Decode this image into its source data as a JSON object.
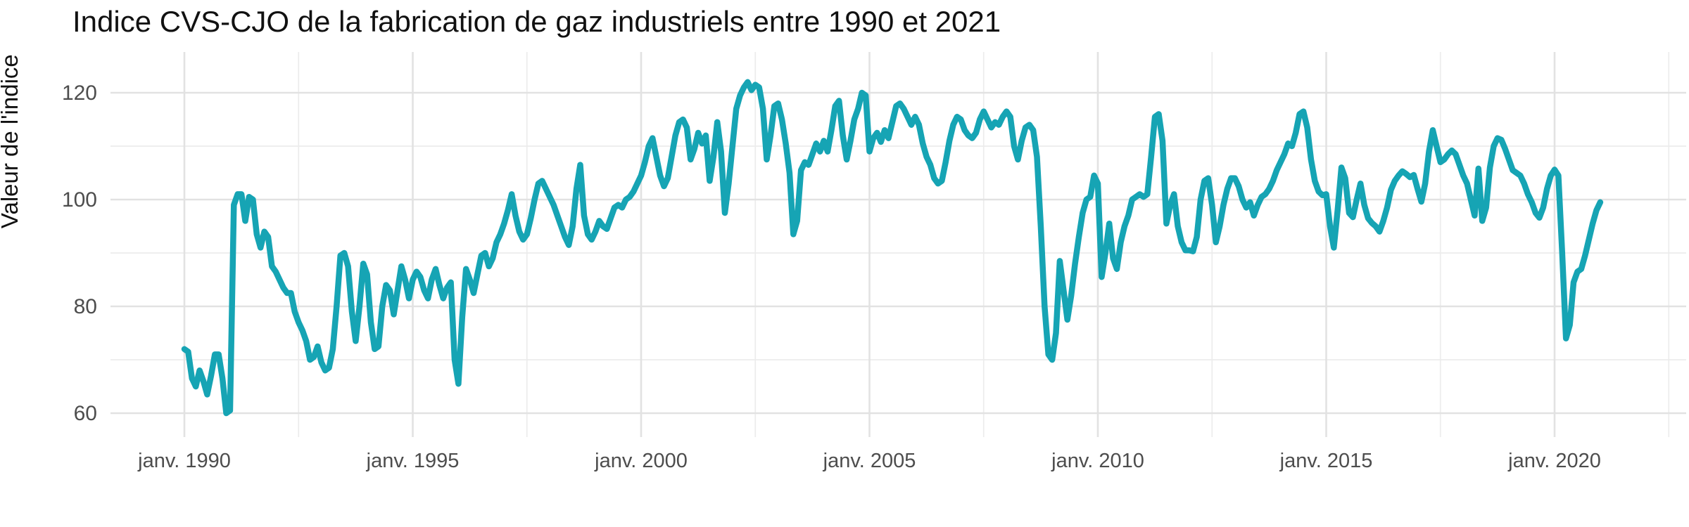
{
  "title": "Indice CVS-CJO de la fabrication de gaz industriels entre 1990 et 2021",
  "colors": {
    "background": "#ffffff",
    "line": "#16A4B4",
    "grid_major": "#E2E2E2",
    "grid_minor": "#ECECEC",
    "tick_text": "#4D4D4D",
    "title_text": "#111111"
  },
  "chart_data": {
    "type": "line",
    "title": "Indice CVS-CJO de la fabrication de gaz industriels entre 1990 et 2021",
    "xlabel": "",
    "ylabel": "Valeur de l'indice",
    "legend": false,
    "grid": true,
    "ylim": [
      60,
      122
    ],
    "y_ticks": [
      60,
      80,
      100,
      120
    ],
    "y_minor_ticks": [
      70,
      90,
      110
    ],
    "x_ticks": [
      {
        "label": "janv. 1990",
        "year": 1990
      },
      {
        "label": "janv. 1995",
        "year": 1995
      },
      {
        "label": "janv. 2000",
        "year": 2000
      },
      {
        "label": "janv. 2005",
        "year": 2005
      },
      {
        "label": "janv. 2010",
        "year": 2010
      },
      {
        "label": "janv. 2015",
        "year": 2015
      },
      {
        "label": "janv. 2020",
        "year": 2020
      }
    ],
    "x_minor_years": [
      1987.5,
      1992.5,
      1997.5,
      2002.5,
      2007.5,
      2012.5,
      2017.5,
      2022.5
    ],
    "x_start_year": 1990,
    "x_start_month": 1,
    "x_end_year": 2021,
    "x_end_month": 1,
    "frequency": "monthly",
    "monthly_values": [
      72,
      71.5,
      66.5,
      65,
      68,
      66,
      63.5,
      67,
      71,
      71,
      66.5,
      60,
      60.5,
      99,
      101,
      101,
      96,
      100.5,
      100,
      93.5,
      91,
      94,
      93,
      87.5,
      86.5,
      85,
      83.5,
      82.5,
      82.5,
      79,
      77,
      75.5,
      73.5,
      70,
      70.5,
      72.5,
      69.5,
      68,
      68.5,
      72,
      80,
      89.5,
      90,
      87.5,
      79,
      73.5,
      80,
      88,
      86,
      77,
      72,
      72.5,
      80,
      84,
      83,
      78.5,
      83,
      87.5,
      85,
      81.5,
      85,
      86.5,
      85.5,
      83,
      81.5,
      85,
      87,
      84,
      81.5,
      83.5,
      84.5,
      70,
      65.5,
      78,
      87,
      85,
      82.5,
      86,
      89.5,
      90,
      87.5,
      89,
      92,
      93.5,
      95.5,
      98,
      101,
      97,
      94,
      92.5,
      93.5,
      96.5,
      100,
      103,
      103.5,
      102,
      100.5,
      99,
      97,
      95,
      93,
      91.5,
      95,
      102,
      106.5,
      97,
      93.5,
      92.5,
      94,
      96,
      95,
      94.5,
      96.5,
      98.5,
      99,
      98.5,
      100,
      100.5,
      101.5,
      103,
      104.5,
      107,
      110,
      111.5,
      108,
      104.5,
      102.5,
      104,
      108,
      112,
      114.5,
      115,
      113.5,
      107.5,
      109.5,
      112.5,
      110.5,
      112,
      103.5,
      108,
      114.5,
      109,
      97.5,
      103,
      110,
      117,
      119.5,
      121,
      122,
      120.5,
      121.5,
      121,
      117,
      107.5,
      112,
      117.5,
      118,
      115,
      110.5,
      105,
      93.5,
      96,
      105.5,
      107,
      106.5,
      108.5,
      110.5,
      109,
      111,
      109,
      113,
      117.5,
      118.5,
      112,
      107.5,
      111,
      115,
      117,
      120,
      119.5,
      109,
      111.5,
      112.5,
      110.8,
      113,
      111.5,
      114.5,
      117.5,
      118,
      117,
      115.5,
      114,
      115.5,
      114,
      110.5,
      108,
      106.5,
      104,
      103,
      103.5,
      107,
      111,
      114,
      115.5,
      115,
      113,
      112,
      111.5,
      112.5,
      115,
      116.5,
      115,
      113.5,
      114.5,
      114,
      115.5,
      116.5,
      115.5,
      110,
      107.5,
      111,
      113.5,
      114,
      113,
      108,
      95,
      80,
      71,
      70,
      75,
      88.5,
      83,
      77.5,
      82,
      88,
      93,
      97.5,
      100,
      100.5,
      104.5,
      103,
      85.5,
      90,
      95.5,
      89,
      87,
      92,
      95,
      97,
      100,
      100.5,
      101,
      100.5,
      101,
      108,
      115.5,
      116,
      111,
      95.5,
      99,
      101,
      95,
      92,
      90.5,
      90.5,
      90.3,
      93,
      100,
      103.5,
      104,
      99,
      92,
      95,
      99,
      102,
      104,
      104,
      102.5,
      100,
      98.5,
      99.5,
      97,
      99,
      100.5,
      101,
      102,
      103.5,
      105.5,
      107,
      108.5,
      110.5,
      110,
      112.5,
      116,
      116.5,
      113.5,
      107.5,
      103.5,
      101.5,
      100.8,
      101,
      95,
      91,
      98,
      106,
      104,
      97.5,
      96.7,
      100,
      103,
      99,
      96.5,
      95.6,
      95,
      94,
      96,
      98.5,
      101.8,
      103.5,
      104.5,
      105.3,
      104.8,
      104.2,
      104.6,
      102,
      99.6,
      103,
      109,
      113,
      110,
      107,
      107.5,
      108.5,
      109.2,
      108.5,
      106.5,
      104.5,
      103,
      100,
      97,
      105.8,
      96,
      98.5,
      106,
      110,
      111.5,
      111.2,
      109.5,
      107.5,
      105.5,
      105,
      104.5,
      103,
      101,
      99.5,
      97.5,
      96.6,
      98.5,
      102,
      104.5,
      105.6,
      104.5,
      90,
      74,
      76.5,
      84.5,
      86.5,
      87,
      89.5,
      92.5,
      95.5,
      98,
      99.5
    ]
  }
}
